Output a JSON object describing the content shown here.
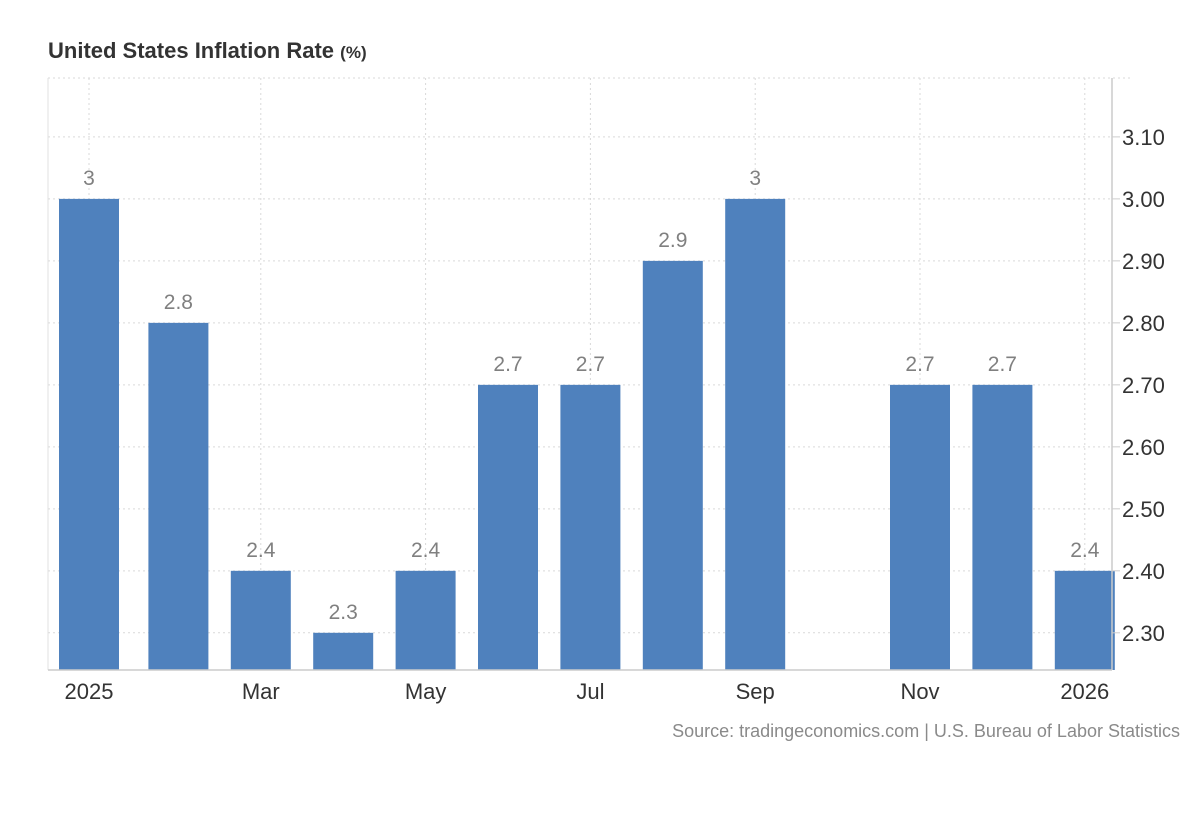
{
  "chart_data": {
    "type": "bar",
    "title": "United States Inflation Rate",
    "title_unit": "(%)",
    "x": [
      "2025-01",
      "2025-02",
      "2025-03",
      "2025-04",
      "2025-05",
      "2025-06",
      "2025-07",
      "2025-08",
      "2025-09",
      "2025-10",
      "2025-11",
      "2025-12",
      "2026-01"
    ],
    "values": [
      3.0,
      2.8,
      2.4,
      2.3,
      2.4,
      2.7,
      2.7,
      2.9,
      3.0,
      null,
      2.7,
      2.7,
      2.4
    ],
    "value_labels": [
      "3",
      "2.8",
      "2.4",
      "2.3",
      "2.4",
      "2.7",
      "2.7",
      "2.9",
      "3",
      "",
      "2.7",
      "2.7",
      "2.4"
    ],
    "x_tick_labels": [
      {
        "x": "2025-01",
        "label": "2025"
      },
      {
        "x": "2025-03",
        "label": "Mar"
      },
      {
        "x": "2025-05",
        "label": "May"
      },
      {
        "x": "2025-07",
        "label": "Jul"
      },
      {
        "x": "2025-09",
        "label": "Sep"
      },
      {
        "x": "2025-11",
        "label": "Nov"
      },
      {
        "x": "2026-01",
        "label": "2026"
      }
    ],
    "y_ticks": [
      "2.30",
      "2.40",
      "2.50",
      "2.60",
      "2.70",
      "2.80",
      "2.90",
      "3.00",
      "3.10"
    ],
    "ylim": [
      2.24,
      3.195
    ],
    "y_axis_position": "right",
    "grid": true,
    "bar_color": "#4f81bd",
    "label_color": "#808080",
    "source": "Source: tradingeconomics.com | U.S. Bureau of Labor Statistics"
  }
}
